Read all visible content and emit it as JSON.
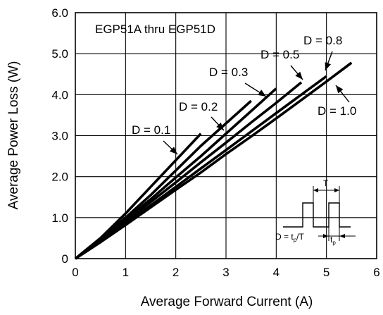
{
  "chart_data": {
    "type": "line",
    "title": "EGP51A thru EGP51D",
    "xlabel": "Average Forward Current (A)",
    "ylabel": "Average Power Loss (W)",
    "xlim": [
      0,
      6
    ],
    "ylim": [
      0,
      6
    ],
    "x_ticks": [
      "0",
      "1",
      "2",
      "3",
      "4",
      "5",
      "6"
    ],
    "y_ticks": [
      "0",
      "1.0",
      "2.0",
      "3.0",
      "4.0",
      "5.0",
      "6.0"
    ],
    "grid": true,
    "series": [
      {
        "name": "D = 0.1",
        "x": [
          0,
          0.5,
          1,
          1.5,
          2,
          2.5
        ],
        "y": [
          0,
          0.5,
          1.1,
          1.75,
          2.4,
          3.05
        ]
      },
      {
        "name": "D = 0.2",
        "x": [
          0,
          0.5,
          1,
          1.5,
          2,
          2.5,
          3,
          3.5
        ],
        "y": [
          0,
          0.48,
          1.0,
          1.55,
          2.15,
          2.75,
          3.3,
          3.85
        ]
      },
      {
        "name": "D = 0.3",
        "x": [
          0,
          0.5,
          1,
          1.5,
          2,
          2.5,
          3,
          3.5,
          4
        ],
        "y": [
          0,
          0.45,
          0.95,
          1.45,
          1.98,
          2.5,
          3.05,
          3.6,
          4.15
        ]
      },
      {
        "name": "D = 0.5",
        "x": [
          0,
          0.5,
          1,
          1.5,
          2,
          2.5,
          3,
          3.5,
          4,
          4.5
        ],
        "y": [
          0,
          0.43,
          0.9,
          1.38,
          1.86,
          2.35,
          2.83,
          3.32,
          3.8,
          4.3
        ]
      },
      {
        "name": "D = 0.8",
        "x": [
          0,
          0.5,
          1,
          1.5,
          2,
          2.5,
          3,
          3.5,
          4,
          4.5,
          5
        ],
        "y": [
          0,
          0.41,
          0.85,
          1.3,
          1.75,
          2.2,
          2.65,
          3.1,
          3.55,
          4.0,
          4.45
        ]
      },
      {
        "name": "D = 1.0",
        "x": [
          0,
          0.5,
          1,
          1.5,
          2,
          2.5,
          3,
          3.5,
          4,
          4.5,
          5,
          5.5
        ],
        "y": [
          0,
          0.4,
          0.82,
          1.25,
          1.68,
          2.1,
          2.55,
          2.98,
          3.42,
          3.87,
          4.32,
          4.78
        ]
      }
    ],
    "annotations": {
      "waveform_T": "T",
      "waveform_D": "D = t",
      "waveform_D_sub": "p",
      "waveform_D_tail": "/T",
      "waveform_tp": "t",
      "waveform_tp_sub": "p"
    }
  }
}
